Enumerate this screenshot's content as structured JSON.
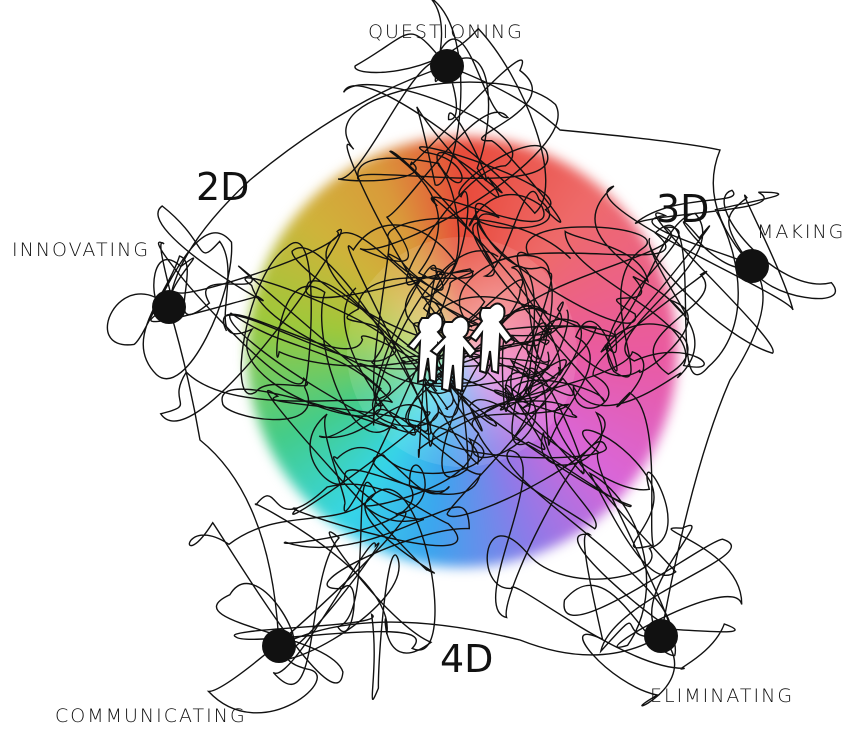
{
  "nodes": [
    {
      "label": "QUESTIONING"
    },
    {
      "label": "MAKING"
    },
    {
      "label": "ELIMINATING"
    },
    {
      "label": "COMMUNICATING"
    },
    {
      "label": "INNOVATING"
    }
  ],
  "dimensions": [
    {
      "label": "2D"
    },
    {
      "label": "3D"
    },
    {
      "label": "4D"
    }
  ]
}
